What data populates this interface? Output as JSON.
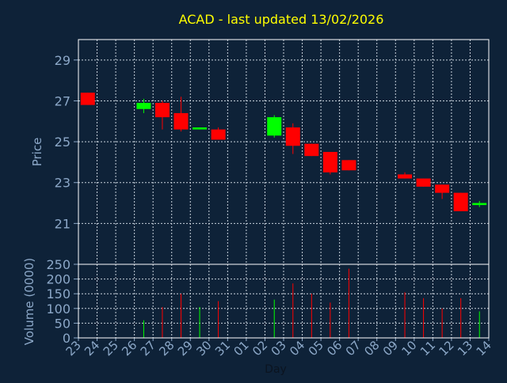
{
  "chart_data": {
    "type": "candlestick",
    "title": "ACAD - last updated 13/02/2026",
    "xlabel": "Day",
    "price_panel": {
      "ylabel": "Price",
      "ylim": [
        19,
        30
      ],
      "yticks": [
        21,
        23,
        25,
        27,
        29
      ]
    },
    "volume_panel": {
      "ylabel": "Volume (0000)",
      "ylim": [
        0,
        250
      ],
      "yticks": [
        0,
        50,
        100,
        150,
        200,
        250
      ]
    },
    "x_ticks": [
      "23",
      "24",
      "25",
      "26",
      "27",
      "28",
      "29",
      "30",
      "31",
      "01",
      "02",
      "03",
      "04",
      "05",
      "06",
      "07",
      "08",
      "09",
      "10",
      "11",
      "12",
      "13",
      "14"
    ],
    "grid": true,
    "colors": {
      "background": "#0e2238",
      "grid": "#c8d2dc",
      "axis_text": "#8ca8c8",
      "title": "#ffff00",
      "up": "#00ff00",
      "down": "#ff0000"
    },
    "candles": [
      {
        "x": "23",
        "open": 27.4,
        "high": 27.4,
        "low": 26.8,
        "close": 26.8,
        "volume": 0
      },
      {
        "x": "26",
        "open": 26.6,
        "high": 27.1,
        "low": 26.4,
        "close": 26.9,
        "volume": 60
      },
      {
        "x": "27",
        "open": 26.9,
        "high": 27.0,
        "low": 25.6,
        "close": 26.2,
        "volume": 105
      },
      {
        "x": "28",
        "open": 26.4,
        "high": 27.2,
        "low": 25.5,
        "close": 25.6,
        "volume": 150
      },
      {
        "x": "29",
        "open": 25.6,
        "high": 25.7,
        "low": 25.6,
        "close": 25.7,
        "volume": 105
      },
      {
        "x": "30",
        "open": 25.6,
        "high": 25.7,
        "low": 25.1,
        "close": 25.1,
        "volume": 125
      },
      {
        "x": "02",
        "open": 25.3,
        "high": 26.3,
        "low": 25.2,
        "close": 26.2,
        "volume": 130
      },
      {
        "x": "03",
        "open": 25.7,
        "high": 25.9,
        "low": 24.4,
        "close": 24.8,
        "volume": 185
      },
      {
        "x": "04",
        "open": 24.9,
        "high": 24.9,
        "low": 24.3,
        "close": 24.3,
        "volume": 150
      },
      {
        "x": "05",
        "open": 24.5,
        "high": 24.5,
        "low": 23.4,
        "close": 23.5,
        "volume": 120
      },
      {
        "x": "06",
        "open": 24.1,
        "high": 24.1,
        "low": 23.6,
        "close": 23.6,
        "volume": 235
      },
      {
        "x": "09",
        "open": 23.4,
        "high": 23.5,
        "low": 23.2,
        "close": 23.2,
        "volume": 155
      },
      {
        "x": "10",
        "open": 23.2,
        "high": 23.2,
        "low": 22.8,
        "close": 22.8,
        "volume": 135
      },
      {
        "x": "11",
        "open": 22.9,
        "high": 22.9,
        "low": 22.2,
        "close": 22.5,
        "volume": 100
      },
      {
        "x": "12",
        "open": 22.5,
        "high": 22.5,
        "low": 21.6,
        "close": 21.6,
        "volume": 135
      },
      {
        "x": "13",
        "open": 21.9,
        "high": 22.1,
        "low": 21.8,
        "close": 22.0,
        "volume": 90
      }
    ]
  }
}
